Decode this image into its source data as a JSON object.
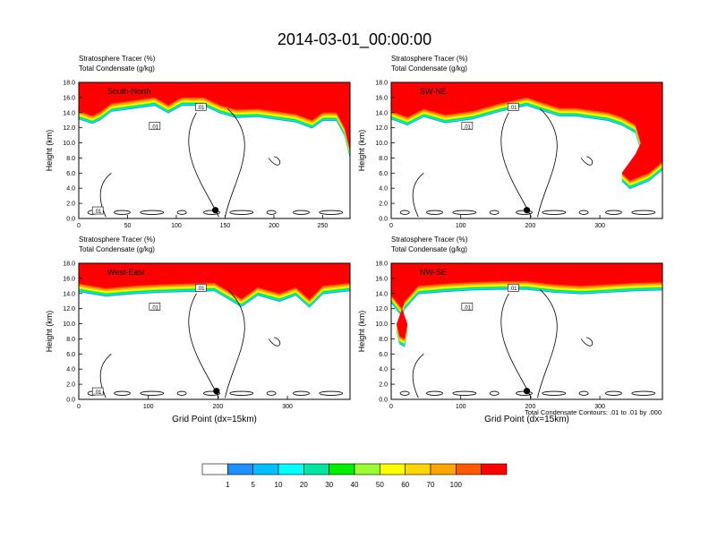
{
  "title": "2014-03-01_00:00:00",
  "panel_label_line1": "Stratosphere Tracer   (%)",
  "panel_label_line2": "Total Condensate   (g/kg)",
  "ylabel": "Height (km)",
  "xlabel": "Grid Point (dx=15km)",
  "contour_note": "Total Condensate Contours: .01 to .01 by .000",
  "colorbar": {
    "labels": [
      "1",
      "5",
      "10",
      "20",
      "30",
      "40",
      "50",
      "60",
      "70",
      "100"
    ],
    "colors": [
      "#ffffff",
      "#1e90ff",
      "#00bfff",
      "#00ffff",
      "#00e5a0",
      "#00ee00",
      "#9aff32",
      "#ffff00",
      "#ffd400",
      "#ffa500",
      "#ff5a00",
      "#ff0000"
    ]
  },
  "chart_data": [
    {
      "type": "heatmap",
      "panel": "top-left",
      "inset_label": "South-North",
      "xlim": [
        0,
        278
      ],
      "xticks": [
        0,
        50,
        100,
        150,
        200,
        250
      ],
      "ylim": [
        0,
        18
      ],
      "yticks": [
        "0.0",
        "2.0",
        "4.0",
        "6.0",
        "8.0",
        "10.0",
        "12.0",
        "14.0",
        "16.0",
        "18.0"
      ],
      "contour_labels": [
        ".01",
        ".01",
        ".01"
      ],
      "marker_x": 140
    },
    {
      "type": "heatmap",
      "panel": "top-right",
      "inset_label": "SW-NE",
      "xlim": [
        0,
        390
      ],
      "xticks": [
        0,
        100,
        200,
        300
      ],
      "ylim": [
        0,
        18
      ],
      "yticks": [
        "0.0",
        "2.0",
        "4.0",
        "6.0",
        "8.0",
        "10.0",
        "12.0",
        "14.0",
        "16.0",
        "18.0"
      ],
      "contour_labels": [
        ".01",
        ".01"
      ],
      "marker_x": 195
    },
    {
      "type": "heatmap",
      "panel": "bottom-left",
      "inset_label": "West-East",
      "xlim": [
        0,
        390
      ],
      "xticks": [
        0,
        100,
        200,
        300
      ],
      "ylim": [
        0,
        18
      ],
      "yticks": [
        "0.0",
        "2.0",
        "4.0",
        "6.0",
        "8.0",
        "10.0",
        "12.0",
        "14.0",
        "16.0",
        "18.0"
      ],
      "contour_labels": [
        ".01",
        ".01",
        ".01"
      ],
      "marker_x": 198
    },
    {
      "type": "heatmap",
      "panel": "bottom-right",
      "inset_label": "NW-SE",
      "xlim": [
        0,
        390
      ],
      "xticks": [
        0,
        100,
        200,
        300
      ],
      "ylim": [
        0,
        18
      ],
      "yticks": [
        "0.0",
        "2.0",
        "4.0",
        "6.0",
        "8.0",
        "10.0",
        "12.0",
        "14.0",
        "16.0",
        "18.0"
      ],
      "contour_labels": [
        ".01",
        ".01"
      ],
      "marker_x": 195
    }
  ]
}
